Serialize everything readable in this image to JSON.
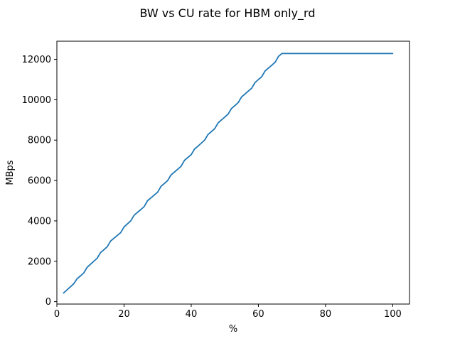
{
  "chart_data": {
    "type": "line",
    "title": "BW vs CU rate for HBM only_rd",
    "xlabel": "%",
    "ylabel": "MBps",
    "xlim": [
      0,
      105
    ],
    "ylim": [
      -120,
      12900
    ],
    "xticks": [
      0,
      20,
      40,
      60,
      80,
      100
    ],
    "yticks": [
      0,
      2000,
      4000,
      6000,
      8000,
      10000,
      12000
    ],
    "grid": false,
    "legend": "none",
    "series": [
      {
        "color": "#1f77b4",
        "x": [
          2,
          3,
          4,
          5,
          6,
          7,
          8,
          9,
          10,
          11,
          12,
          13,
          14,
          15,
          16,
          17,
          18,
          19,
          20,
          21,
          22,
          23,
          24,
          25,
          26,
          27,
          28,
          29,
          30,
          31,
          32,
          33,
          34,
          35,
          36,
          37,
          38,
          39,
          40,
          41,
          42,
          43,
          44,
          45,
          46,
          47,
          48,
          49,
          50,
          51,
          52,
          53,
          54,
          55,
          56,
          57,
          58,
          59,
          60,
          61,
          62,
          63,
          64,
          65,
          66,
          67,
          68,
          70,
          75,
          80,
          85,
          90,
          95,
          100
        ],
        "y": [
          430,
          580,
          730,
          880,
          1130,
          1270,
          1420,
          1700,
          1850,
          2000,
          2150,
          2430,
          2570,
          2720,
          3000,
          3140,
          3280,
          3420,
          3700,
          3850,
          4000,
          4280,
          4420,
          4560,
          4710,
          5000,
          5140,
          5280,
          5420,
          5710,
          5850,
          6000,
          6280,
          6420,
          6560,
          6710,
          7000,
          7140,
          7280,
          7560,
          7700,
          7850,
          8000,
          8280,
          8420,
          8570,
          8850,
          9000,
          9140,
          9290,
          9570,
          9710,
          9860,
          10140,
          10280,
          10430,
          10570,
          10850,
          11000,
          11140,
          11430,
          11570,
          11710,
          11860,
          12150,
          12290,
          12290,
          12290,
          12290,
          12290,
          12290,
          12290,
          12290,
          12290
        ]
      }
    ]
  }
}
